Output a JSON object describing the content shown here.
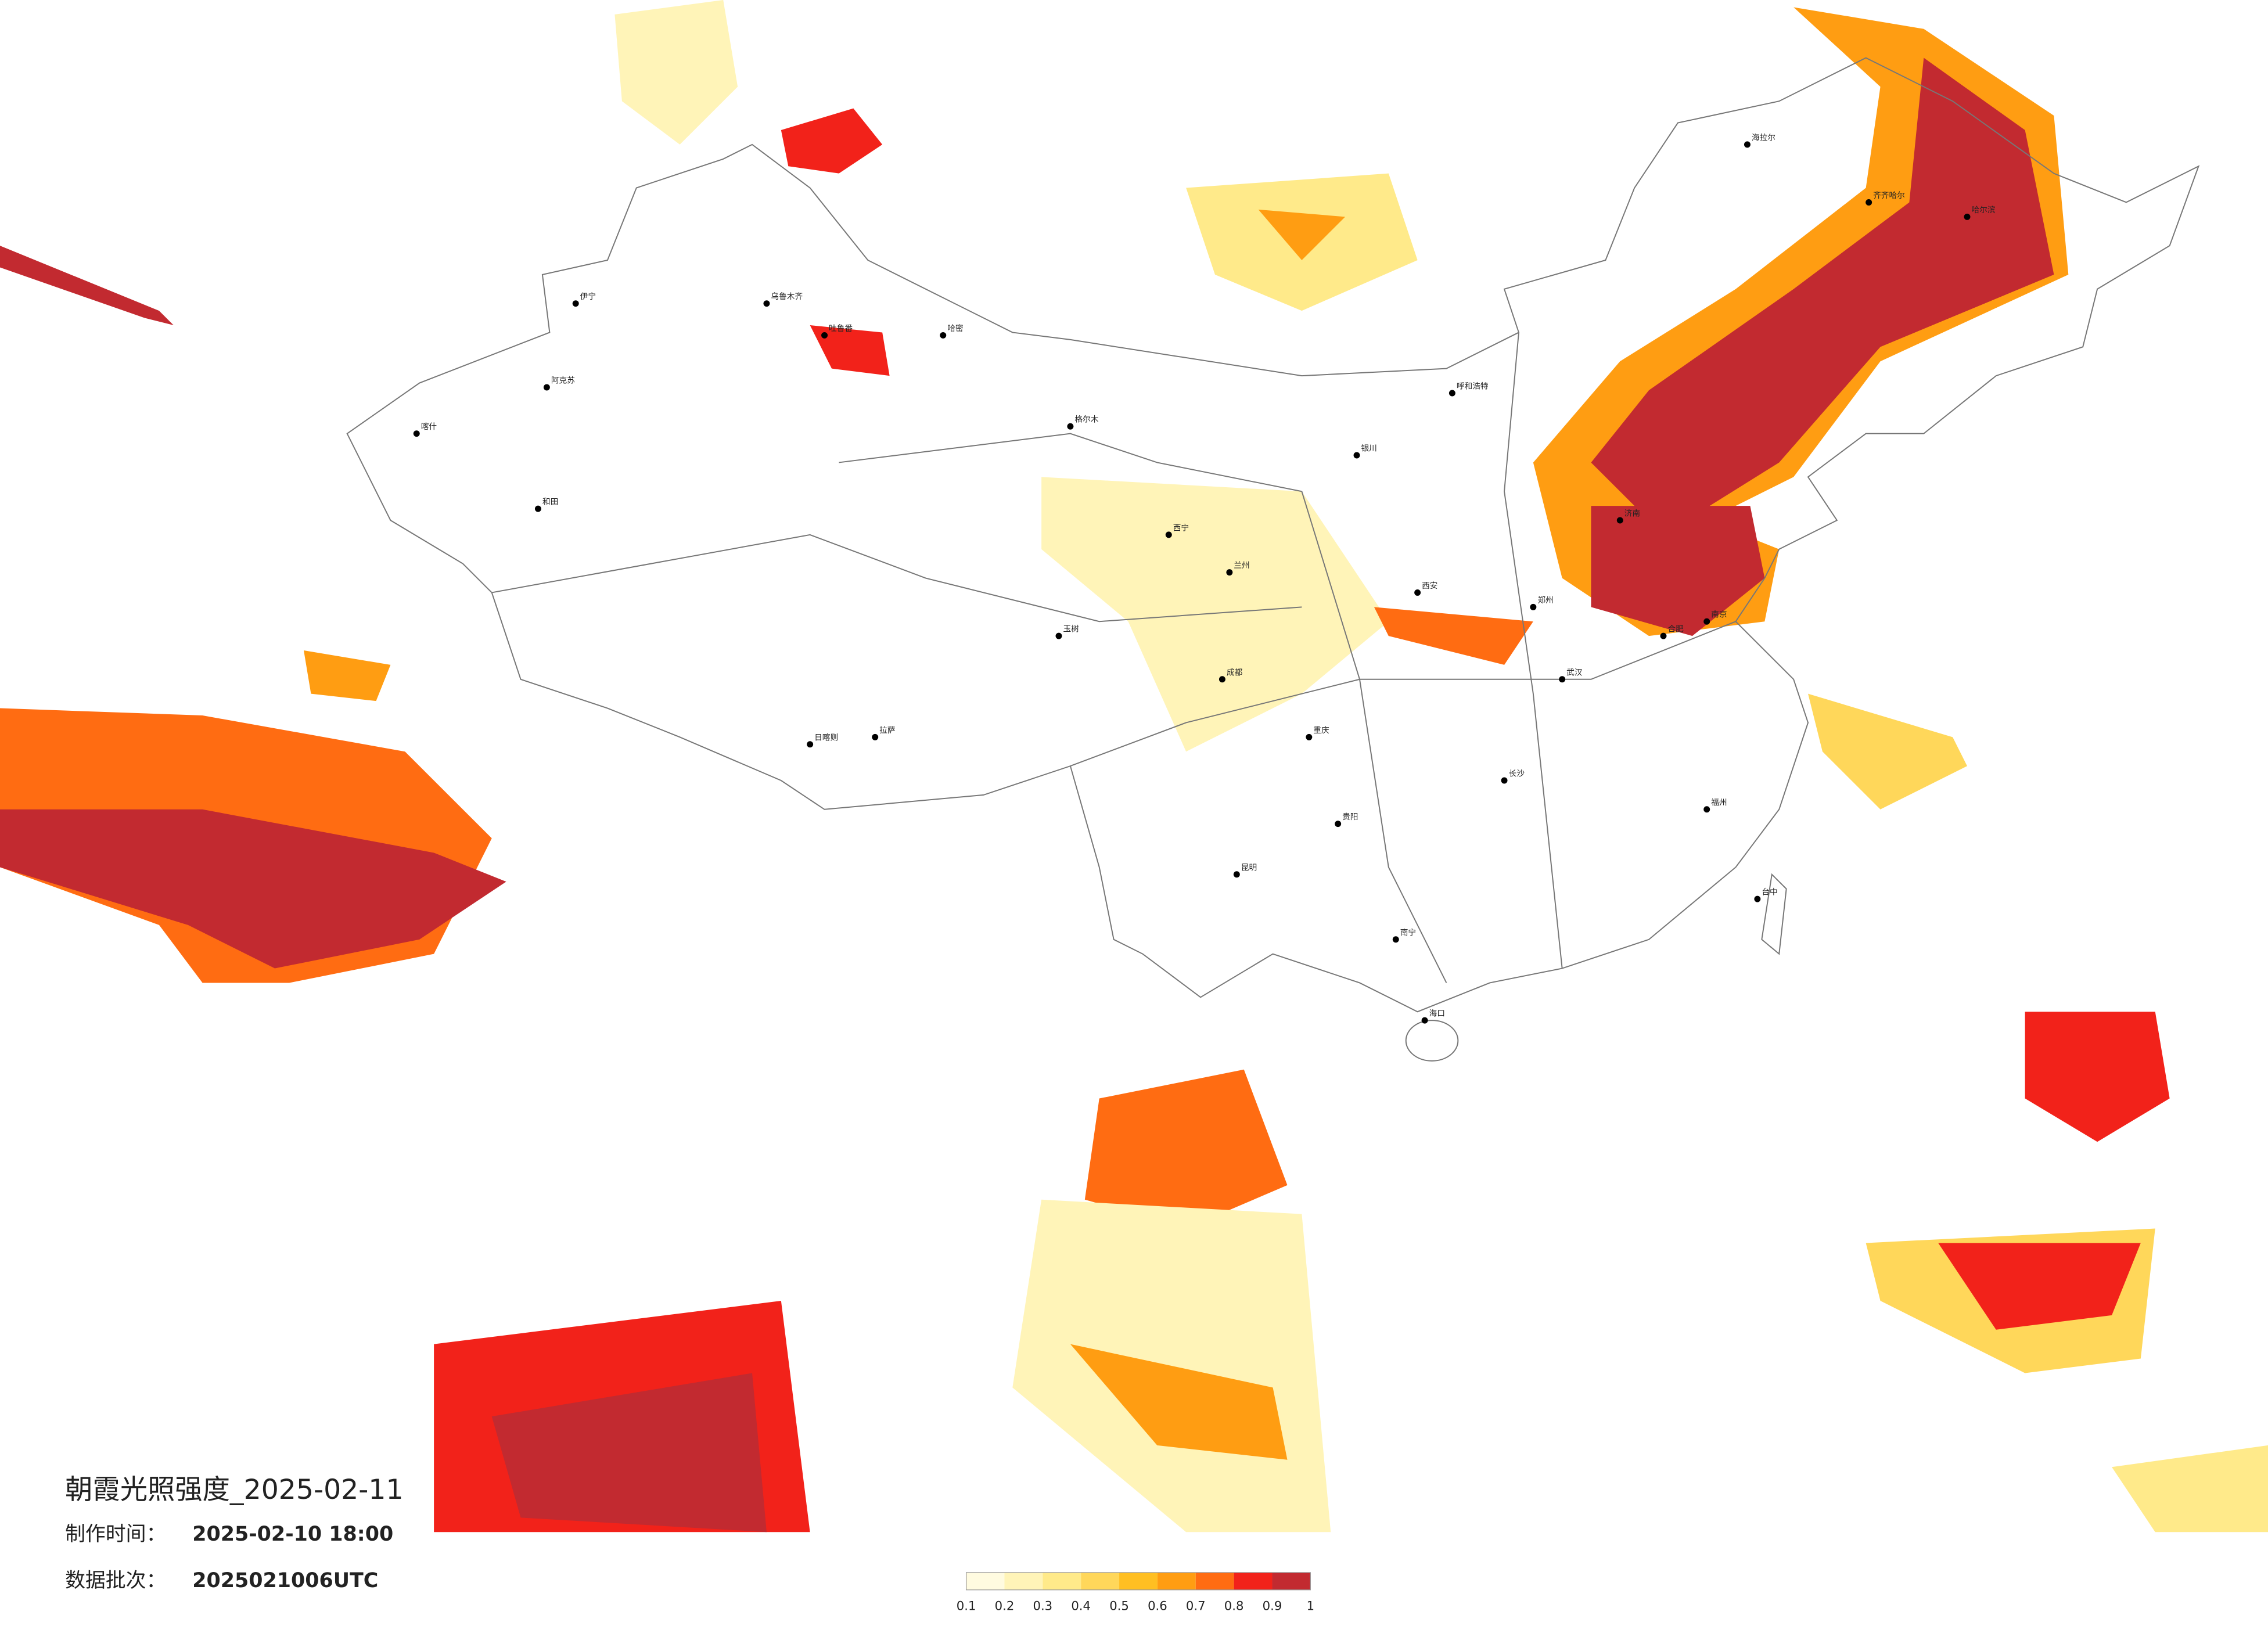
{
  "title": "朝霞光照强度_2025-02-11",
  "production_time": {
    "label": "制作时间：",
    "value": "2025-02-10 18:00"
  },
  "batch": {
    "label": "数据批次：",
    "value": "2025021006UTC"
  },
  "colorbar": {
    "ticks": [
      0.1,
      0.2,
      0.3,
      0.4,
      0.5,
      0.6,
      0.7,
      0.8,
      0.9,
      1
    ],
    "colors": [
      "#fffbe0",
      "#fff4b8",
      "#ffea8a",
      "#ffd75a",
      "#ffbf22",
      "#ff9d12",
      "#ff6c12",
      "#f2221a",
      "#c22a30"
    ]
  },
  "cities": [
    "海拉尔",
    "齐齐哈尔",
    "哈尔滨",
    "伊宁",
    "乌鲁木齐",
    "吐鲁番",
    "哈密",
    "阿克苏",
    "和田",
    "喀什",
    "格尔木",
    "玉树",
    "日喀则",
    "拉萨",
    "西宁",
    "兰州",
    "银川",
    "呼和浩特",
    "西安",
    "成都",
    "重庆",
    "贵阳",
    "昆明",
    "南宁",
    "长沙",
    "武汉",
    "合肥",
    "南京",
    "济南",
    "郑州",
    "福州",
    "海口",
    "台中"
  ]
}
